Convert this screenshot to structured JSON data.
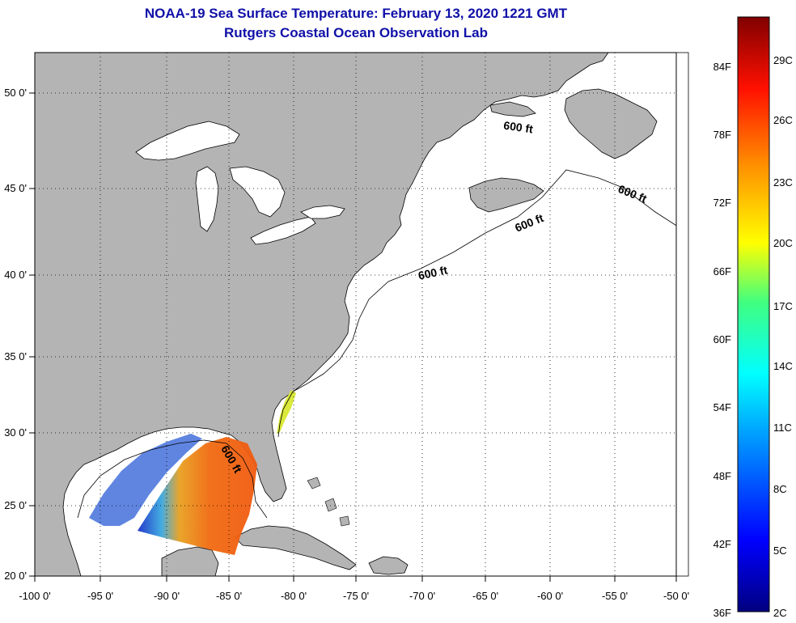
{
  "header": {
    "title_line1": "NOAA-19 Sea Surface Temperature:  February 13, 2020 1221 GMT",
    "title_line2": "Rutgers Coastal Ocean Observation Lab"
  },
  "map": {
    "lon_labels": [
      "-100 0'",
      "-95 0'",
      "-90 0'",
      "-85 0'",
      "-80 0'",
      "-75 0'",
      "-70 0'",
      "-65 0'",
      "-60 0'",
      "-55 0'",
      "-50 0'"
    ],
    "lat_labels": [
      "50 0'",
      "45 0'",
      "40 0'",
      "35 0'",
      "30 0'",
      "25 0'",
      "20 0'"
    ],
    "contour_labels": [
      "600 ft",
      "600 ft",
      "600 ft",
      "600 ft",
      "600 ft"
    ],
    "colors": {
      "land": "#b4b4b4",
      "ocean": "#ffffff",
      "grid": "#000000",
      "title": "#1010a8"
    }
  },
  "colorbar": {
    "f_labels": [
      "84F",
      "78F",
      "72F",
      "66F",
      "60F",
      "54F",
      "48F",
      "42F",
      "36F"
    ],
    "c_labels": [
      "29C",
      "26C",
      "23C",
      "20C",
      "17C",
      "14C",
      "11C",
      "8C",
      "5C",
      "2C"
    ]
  }
}
